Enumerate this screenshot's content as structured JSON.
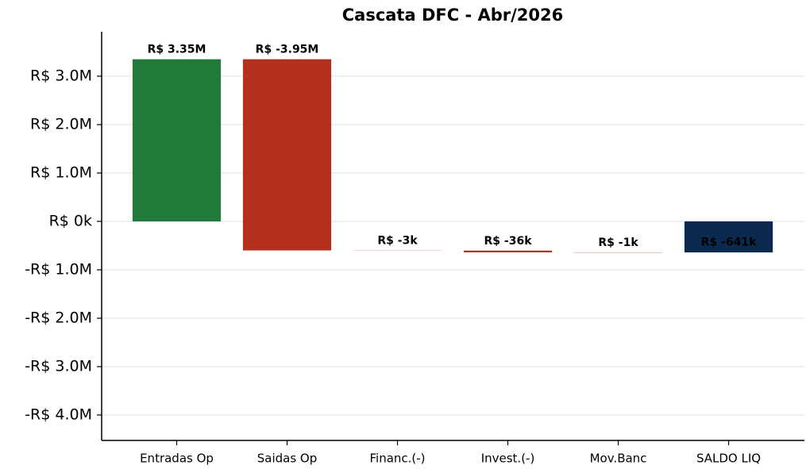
{
  "chart_data": {
    "type": "waterfall",
    "title": "Cascata DFC - Abr/2026",
    "categories": [
      "Entradas Op",
      "Saidas Op",
      "Financ.(-)",
      "Invest.(-)",
      "Mov.Banc",
      "SALDO LIQ"
    ],
    "values": [
      3350000,
      -3950000,
      -3000,
      -36000,
      -1000,
      -641000
    ],
    "value_labels": [
      "R$ 3.35M",
      "R$ -3.95M",
      "R$ -3k",
      "R$ -36k",
      "R$ -1k",
      "R$ -641k"
    ],
    "colors": [
      "#217a3a",
      "#b3301f",
      "#d77a6e",
      "#b3301f",
      "#b3301f",
      "#0c2a4f"
    ],
    "ylim": [
      -4525000,
      3918000
    ],
    "yticks": [
      {
        "value": -4000000,
        "label": "-R$ 4.0M"
      },
      {
        "value": -3000000,
        "label": "-R$ 3.0M"
      },
      {
        "value": -2000000,
        "label": "-R$ 2.0M"
      },
      {
        "value": -1000000,
        "label": "-R$ 1.0M"
      },
      {
        "value": 0,
        "label": "R$ 0k"
      },
      {
        "value": 1000000,
        "label": "R$ 1.0M"
      },
      {
        "value": 2000000,
        "label": "R$ 2.0M"
      },
      {
        "value": 3000000,
        "label": "R$ 3.0M"
      }
    ],
    "grid": true
  }
}
